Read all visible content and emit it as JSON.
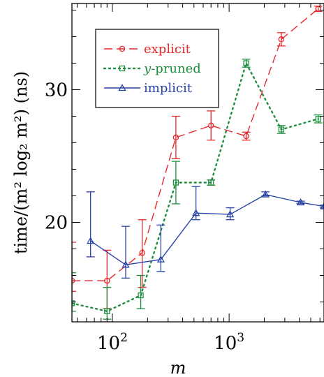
{
  "chart_data": {
    "type": "line",
    "xscale": "log",
    "xlim": [
      45,
      6500
    ],
    "ylim": [
      12.5,
      36.5
    ],
    "xlabel": "m",
    "ylabel": "time/(m² log₂ m²) (ns)",
    "x_ticks": [
      {
        "value": 100,
        "label": "10",
        "exp": "2"
      },
      {
        "value": 1000,
        "label": "10",
        "exp": "3"
      }
    ],
    "y_ticks": [
      {
        "value": 20,
        "label": "20"
      },
      {
        "value": 30,
        "label": "30"
      }
    ],
    "legend_position": "top-left",
    "series": [
      {
        "name": "explicit",
        "color": "#e8292c",
        "dash": "12,6",
        "marker": "circle",
        "points": [
          {
            "x": 45,
            "y": 15.6,
            "lo": 14.8,
            "hi": 18.5
          },
          {
            "x": 90,
            "y": 15.6,
            "lo": 13.5,
            "hi": 17.9
          },
          {
            "x": 180,
            "y": 17.7,
            "lo": 15.1,
            "hi": 20.2
          },
          {
            "x": 350,
            "y": 26.4,
            "lo": 24.8,
            "hi": 28.0
          },
          {
            "x": 700,
            "y": 27.3,
            "lo": 26.2,
            "hi": 28.4
          },
          {
            "x": 1400,
            "y": 26.5,
            "lo": 26.2,
            "hi": 26.8
          },
          {
            "x": 2800,
            "y": 33.8,
            "lo": 33.3,
            "hi": 34.3
          },
          {
            "x": 5800,
            "y": 36.1,
            "lo": 35.9,
            "hi": 36.3
          }
        ]
      },
      {
        "name": "y-pruned",
        "color": "#1e8e3e",
        "dash": "2,5",
        "marker": "square",
        "points": [
          {
            "x": 45,
            "y": 13.9,
            "lo": 13.3,
            "hi": 16.2
          },
          {
            "x": 90,
            "y": 13.3,
            "lo": 12.7,
            "hi": 15.1
          },
          {
            "x": 175,
            "y": 14.5,
            "lo": 13.5,
            "hi": 16.0
          },
          {
            "x": 350,
            "y": 23.0,
            "lo": 21.4,
            "hi": 24.6
          },
          {
            "x": 700,
            "y": 23.0,
            "lo": 22.8,
            "hi": 23.2
          },
          {
            "x": 1400,
            "y": 32.0,
            "lo": 31.7,
            "hi": 32.3
          },
          {
            "x": 2800,
            "y": 27.0,
            "lo": 26.7,
            "hi": 27.3
          },
          {
            "x": 5800,
            "y": 27.8,
            "lo": 27.5,
            "hi": 28.1
          }
        ]
      },
      {
        "name": "implicit",
        "color": "#2944a6",
        "dash": "",
        "marker": "triangle",
        "points": [
          {
            "x": 65,
            "y": 18.6,
            "lo": 17.4,
            "hi": 22.3
          },
          {
            "x": 130,
            "y": 16.8,
            "lo": 15.8,
            "hi": 19.7
          },
          {
            "x": 260,
            "y": 17.2,
            "lo": 16.3,
            "hi": 19.8
          },
          {
            "x": 520,
            "y": 20.7,
            "lo": 20.2,
            "hi": 22.7
          },
          {
            "x": 1020,
            "y": 20.6,
            "lo": 20.2,
            "hi": 21.1
          },
          {
            "x": 2050,
            "y": 22.1,
            "lo": 22.0,
            "hi": 22.3
          },
          {
            "x": 4100,
            "y": 21.5,
            "lo": 21.4,
            "hi": 21.6
          },
          {
            "x": 6500,
            "y": 21.2,
            "lo": 21.1,
            "hi": 21.3
          }
        ]
      }
    ]
  }
}
